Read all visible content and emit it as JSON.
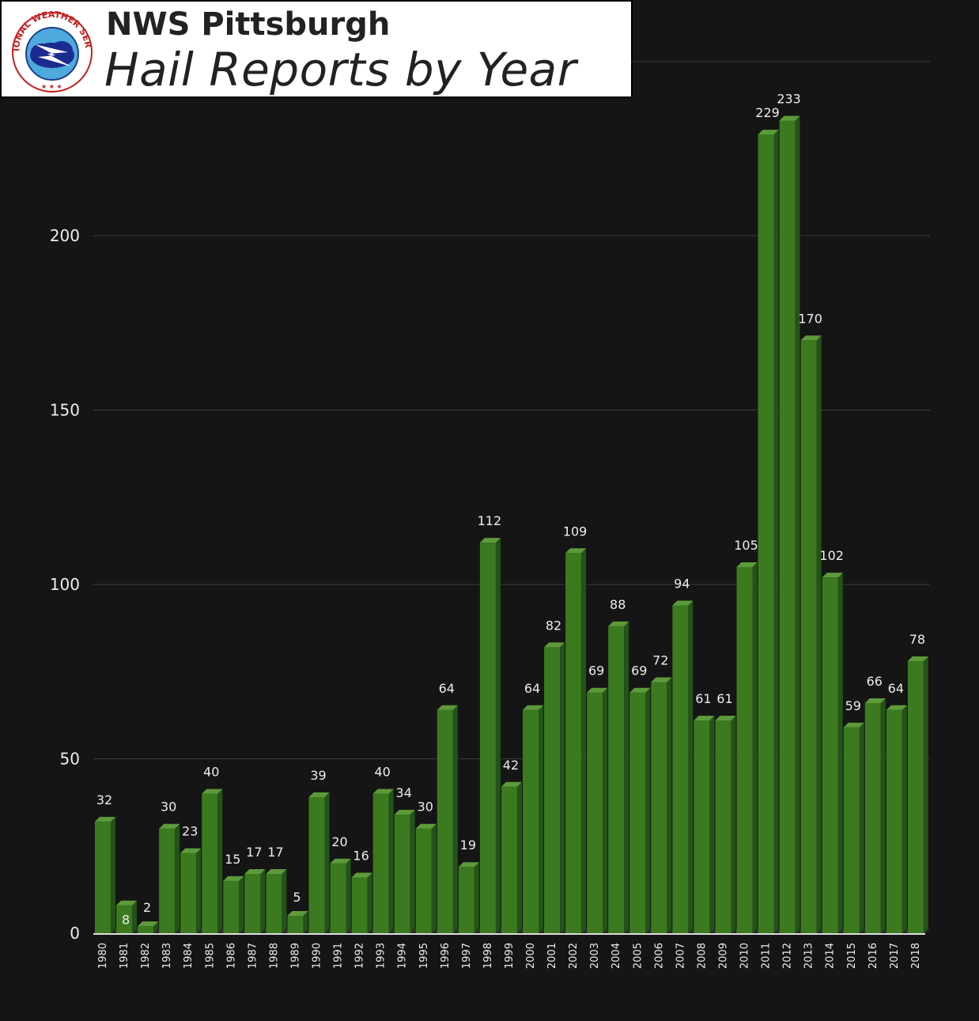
{
  "header": {
    "line1": "NWS Pittsburgh",
    "line2": "Hail Reports by Year",
    "logo_ring_text": "NATIONAL WEATHER SERVICE"
  },
  "colors": {
    "background": "#151515",
    "bar_front": "#3b7a1f",
    "bar_side": "#24531a",
    "bar_top": "#5d9a3a",
    "gridline": "#3a3a3a",
    "text": "#eeeeee"
  },
  "chart_data": {
    "type": "bar",
    "style": "3d-column",
    "categories": [
      "1980",
      "1981",
      "1982",
      "1983",
      "1984",
      "1985",
      "1986",
      "1987",
      "1988",
      "1989",
      "1990",
      "1991",
      "1992",
      "1993",
      "1994",
      "1995",
      "1996",
      "1997",
      "1998",
      "1999",
      "2000",
      "2001",
      "2002",
      "2003",
      "2004",
      "2005",
      "2006",
      "2007",
      "2008",
      "2009",
      "2010",
      "2011",
      "2012",
      "2013",
      "2014",
      "2015",
      "2016",
      "2017",
      "2018"
    ],
    "values": [
      32,
      8,
      2,
      30,
      23,
      40,
      15,
      17,
      17,
      5,
      39,
      20,
      16,
      40,
      34,
      30,
      64,
      19,
      112,
      42,
      64,
      82,
      109,
      69,
      88,
      69,
      72,
      94,
      61,
      61,
      105,
      229,
      233,
      170,
      102,
      59,
      66,
      64,
      78
    ],
    "ylim": [
      0,
      250
    ],
    "yticks": [
      0,
      50,
      100,
      150,
      200
    ],
    "grid": true,
    "legend": "none"
  }
}
